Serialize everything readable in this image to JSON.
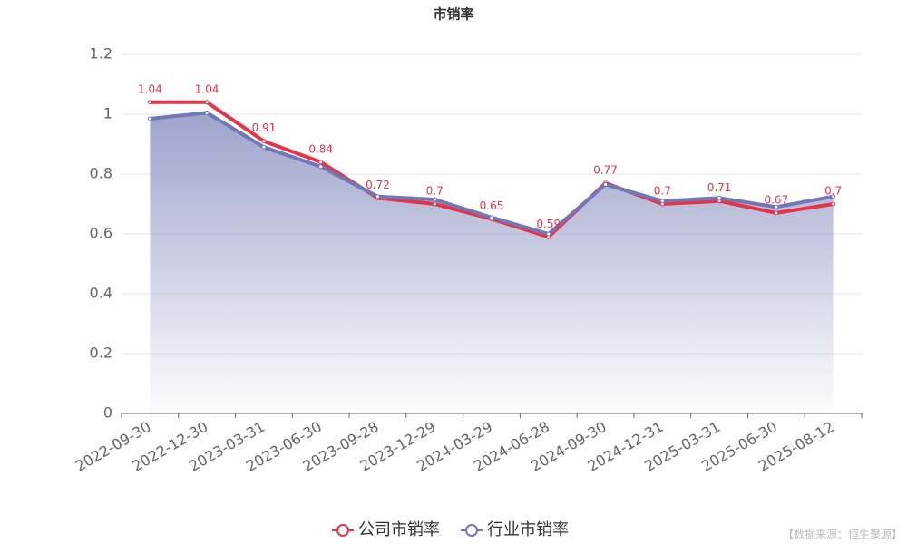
{
  "chart_data": {
    "type": "line",
    "title": "市销率",
    "categories": [
      "2022-09-30",
      "2022-12-30",
      "2023-03-31",
      "2023-06-30",
      "2023-09-28",
      "2023-12-29",
      "2024-03-29",
      "2024-06-28",
      "2024-09-30",
      "2024-12-31",
      "2025-03-31",
      "2025-06-30",
      "2025-08-12"
    ],
    "series": [
      {
        "name": "公司市销率",
        "color": "#e63446",
        "values": [
          1.04,
          1.04,
          0.91,
          0.84,
          0.72,
          0.7,
          0.65,
          0.59,
          0.77,
          0.7,
          0.71,
          0.67,
          0.7
        ]
      },
      {
        "name": "行业市销率",
        "color": "#7178b5",
        "values": [
          0.985,
          1.005,
          0.89,
          0.825,
          0.725,
          0.715,
          0.655,
          0.6,
          0.765,
          0.71,
          0.72,
          0.69,
          0.725
        ]
      }
    ],
    "ylim": [
      0,
      1.2
    ],
    "yticks": [
      0,
      0.2,
      0.4,
      0.6,
      0.8,
      1,
      1.2
    ],
    "grid": true,
    "source": "【数据来源：恒生聚源】"
  }
}
